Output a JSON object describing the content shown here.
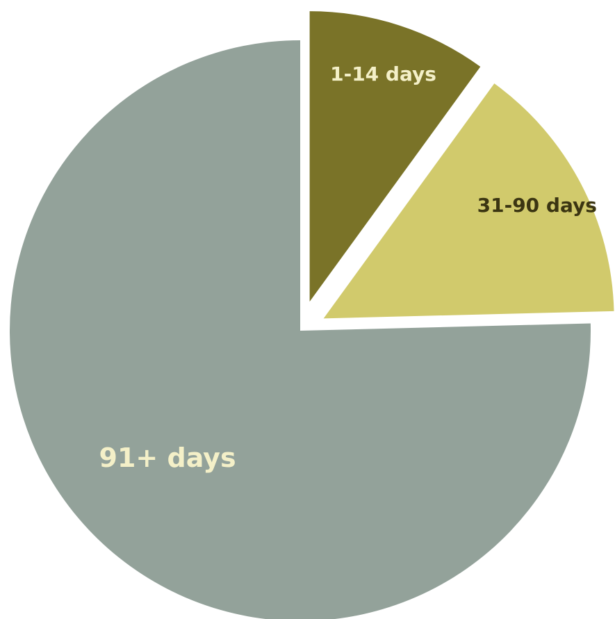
{
  "chart_data": {
    "type": "pie",
    "start_angle_deg": 0,
    "direction": "clockwise",
    "exploded": true,
    "slices": [
      {
        "label": "1-14 days",
        "value": 10,
        "color": "#7a7328",
        "label_color": "#f4f0c8"
      },
      {
        "label": "31-90 days",
        "value": 14.6,
        "color": "#d1ca6c",
        "label_color": "#3b3512"
      },
      {
        "label": "91+ days",
        "value": 75.4,
        "color": "#93a29a",
        "label_color": "#f4f0c8"
      }
    ],
    "legend": "none"
  }
}
